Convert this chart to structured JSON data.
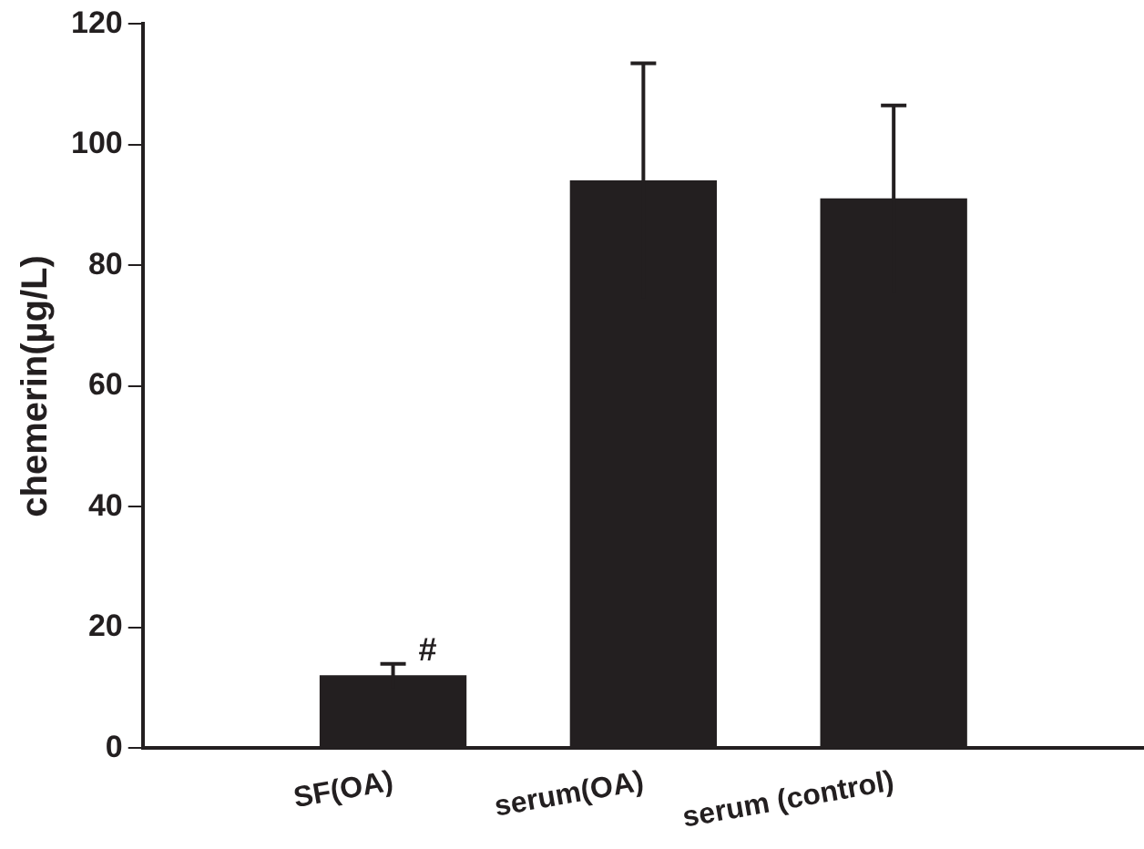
{
  "chart_data": {
    "type": "bar",
    "ylabel": "chemerin(µg/L)",
    "categories": [
      "SF(OA)",
      "serum(OA)",
      "serum (control)"
    ],
    "values": [
      12,
      94,
      91
    ],
    "errors": [
      2,
      19.5,
      15.5
    ],
    "color": "#231f20",
    "ylim": [
      0,
      120
    ],
    "yticks": [
      0,
      20,
      40,
      60,
      80,
      100,
      120
    ],
    "grid": false,
    "legend": false,
    "annotations": [
      "#"
    ]
  }
}
